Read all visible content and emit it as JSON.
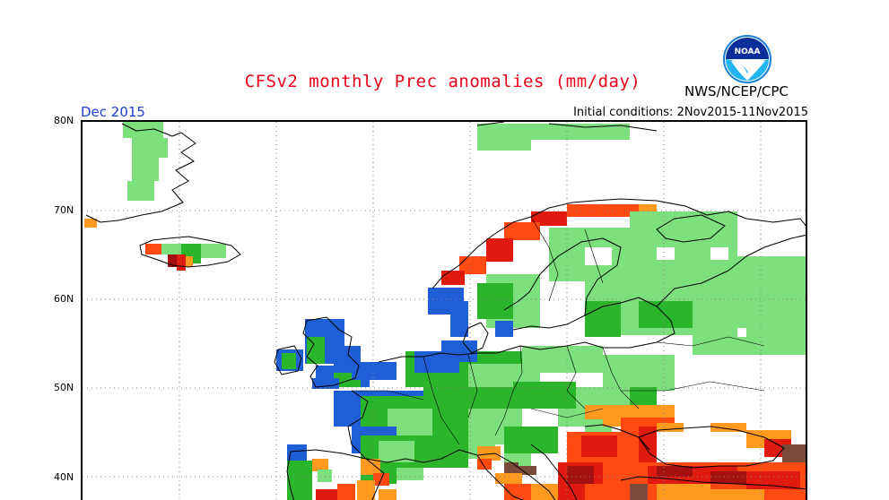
{
  "header": {
    "title": "CFSv2 monthly Prec anomalies (mm/day)",
    "agency": "NWS/NCEP/CPC",
    "logo_text": "NOAA",
    "period": "Dec 2015",
    "initial_conditions": "Initial conditions: 2Nov2015-11Nov2015"
  },
  "axis": {
    "lat_labels": [
      "80N",
      "70N",
      "60N",
      "50N",
      "40N"
    ]
  },
  "colors": {
    "light_green": "#7de07d",
    "green": "#2bb52b",
    "blue": "#1e5fd6",
    "orange": "#ff9a1f",
    "red_orange": "#ff4a12",
    "red": "#e01a0e",
    "dark_red": "#a51010",
    "brown": "#7a4a3a",
    "grid": "#888888",
    "coast": "#000000",
    "title_red": "#e8001a",
    "period_blue": "#1f3fd6"
  }
}
